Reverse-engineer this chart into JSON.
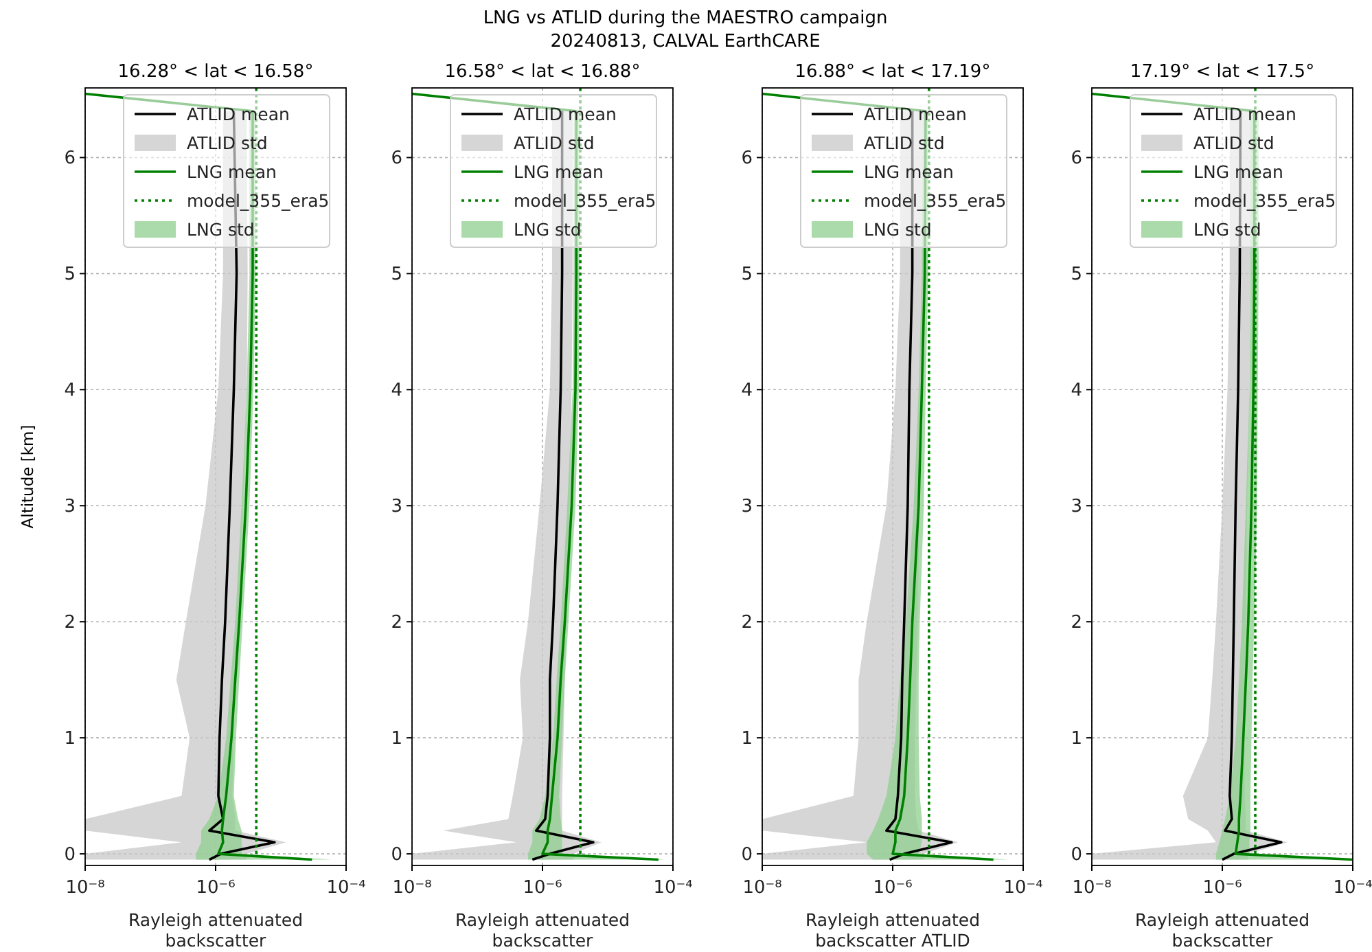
{
  "chart_data": [
    {
      "type": "line",
      "orientation": "horizontal",
      "log": "x",
      "title": "16.28° < lat < 16.58°",
      "xlabel": "Rayleigh attenuated backscatter",
      "ylabel": "Altitude [km]",
      "annotations": [
        "LNG vs ATLID during the MAESTRO campaign",
        "20240813, CALVAL EarthCARE"
      ],
      "xlim": [
        1e-08,
        0.0001
      ],
      "xticks": [
        {
          "value": 1e-08,
          "label": "10⁻⁸"
        },
        {
          "value": 1e-06,
          "label": "10⁻⁶"
        },
        {
          "value": 0.0001,
          "label": "10⁻⁴"
        }
      ],
      "ylim": [
        -0.1,
        6.6
      ],
      "yticks": [
        0,
        1,
        2,
        3,
        4,
        5,
        6
      ],
      "grid": true,
      "legend": "top",
      "series": [
        {
          "name": "ATLID mean",
          "type": "line",
          "color": "#000000",
          "line_style": "solid",
          "x": [
            -0.05,
            0,
            0.1,
            0.2,
            0.3,
            0.5,
            1,
            1.5,
            2,
            3,
            4,
            5,
            6,
            6.4
          ],
          "values": [
            8e-07,
            1.2e-06,
            8e-06,
            8e-07,
            1.3e-06,
            1.1e-06,
            1.15e-06,
            1.25e-06,
            1.4e-06,
            1.65e-06,
            1.9e-06,
            2.1e-06,
            null,
            1.9e-06
          ]
        },
        {
          "name": "ATLID std",
          "type": "area",
          "color": "#c8c8c8",
          "x": [
            -0.05,
            0,
            0.1,
            0.2,
            0.3,
            0.5,
            1,
            1.5,
            2,
            3,
            4,
            5,
            6,
            6.4
          ],
          "values": [
            null,
            null,
            null,
            null,
            null,
            null,
            null,
            null,
            null,
            null,
            null,
            null,
            null,
            null
          ],
          "lower": [
            1e-08,
            1e-08,
            3e-07,
            1e-08,
            1e-08,
            3e-07,
            4e-07,
            2.5e-07,
            3.5e-07,
            7e-07,
            1.1e-06,
            1.3e-06,
            1.3e-06,
            1.3e-06
          ],
          "upper": [
            3e-06,
            3e-06,
            1.2e-05,
            2e-06,
            2e-06,
            1.8e-06,
            1.9e-06,
            2e-06,
            2.2e-06,
            2.6e-06,
            3e-06,
            3.1e-06,
            3e-06,
            3e-06
          ]
        },
        {
          "name": "LNG mean",
          "type": "line",
          "color": "#008000",
          "line_style": "solid",
          "x": [
            -0.05,
            0,
            0.1,
            0.2,
            0.3,
            0.5,
            1,
            1.5,
            2,
            3,
            4,
            5,
            6,
            6.4,
            6.55
          ],
          "values": [
            3e-05,
            1.1e-06,
            1.3e-06,
            1.25e-06,
            1.3e-06,
            1.45e-06,
            1.75e-06,
            2e-06,
            2.3e-06,
            2.9e-06,
            3.4e-06,
            3.7e-06,
            null,
            3.7e-06,
            1e-08
          ]
        },
        {
          "name": "model_355_era5",
          "type": "line",
          "color": "#008000",
          "line_style": "dotted",
          "x": [
            0,
            6.6
          ],
          "values": [
            4.2e-06,
            4.2e-06
          ]
        },
        {
          "name": "LNG std",
          "type": "area",
          "color": "#8fcf8f",
          "x": [
            -0.05,
            0,
            0.1,
            0.2,
            0.3,
            0.5,
            1,
            1.5,
            2,
            3,
            4,
            5,
            6,
            6.4
          ],
          "values": [
            null,
            null,
            null,
            null,
            null,
            null,
            null,
            null,
            null,
            null,
            null,
            null,
            null,
            null
          ],
          "lower": [
            5e-07,
            5e-07,
            6e-07,
            6e-07,
            8e-07,
            1.1e-06,
            1.45e-06,
            1.7e-06,
            2e-06,
            2.5e-06,
            3e-06,
            3.3e-06,
            3.3e-06,
            3.3e-06
          ],
          "upper": [
            6e-05,
            2.5e-06,
            2.5e-06,
            2.5e-06,
            2.2e-06,
            1.9e-06,
            2.05e-06,
            2.3e-06,
            2.6e-06,
            3.3e-06,
            3.8e-06,
            4.1e-06,
            4.1e-06,
            4.1e-06
          ]
        }
      ]
    },
    {
      "type": "line",
      "orientation": "horizontal",
      "log": "x",
      "title": "16.58° < lat < 16.88°",
      "xlabel": "Rayleigh attenuated backscatter",
      "xlim": [
        1e-08,
        0.0001
      ],
      "xticks": [
        {
          "value": 1e-08,
          "label": "10⁻⁸"
        },
        {
          "value": 1e-06,
          "label": "10⁻⁶"
        },
        {
          "value": 0.0001,
          "label": "10⁻⁴"
        }
      ],
      "ylim": [
        -0.1,
        6.6
      ],
      "yticks": [
        0,
        1,
        2,
        3,
        4,
        5,
        6
      ],
      "grid": true,
      "legend": "top",
      "series": [
        {
          "name": "ATLID mean",
          "type": "line",
          "color": "#000000",
          "line_style": "solid",
          "x": [
            -0.05,
            0,
            0.1,
            0.2,
            0.3,
            0.5,
            1,
            1.5,
            2,
            3,
            4,
            5,
            6,
            6.4
          ],
          "values": [
            7e-07,
            1.3e-06,
            6e-06,
            8e-07,
            1.1e-06,
            1.2e-06,
            1.3e-06,
            1.3e-06,
            1.45e-06,
            1.7e-06,
            1.9e-06,
            2e-06,
            null,
            2e-06
          ]
        },
        {
          "name": "ATLID std",
          "type": "area",
          "color": "#c8c8c8",
          "x": [
            -0.05,
            0,
            0.1,
            0.2,
            0.3,
            0.5,
            1,
            1.5,
            2,
            3,
            4,
            5,
            6,
            6.4
          ],
          "values": [
            null,
            null,
            null,
            null,
            null,
            null,
            null,
            null,
            null,
            null,
            null,
            null,
            null,
            null
          ],
          "lower": [
            1e-08,
            1e-08,
            4e-07,
            3e-08,
            3e-07,
            3.5e-07,
            5e-07,
            4.5e-07,
            6e-07,
            9e-07,
            1.3e-06,
            1.4e-06,
            1.4e-06,
            1.4e-06
          ],
          "upper": [
            3e-06,
            3e-06,
            8e-06,
            2e-06,
            2e-06,
            2e-06,
            2.1e-06,
            2.2e-06,
            2.3e-06,
            2.6e-06,
            2.8e-06,
            2.9e-06,
            2.9e-06,
            2.9e-06
          ]
        },
        {
          "name": "LNG mean",
          "type": "line",
          "color": "#008000",
          "line_style": "solid",
          "x": [
            -0.05,
            0,
            0.1,
            0.2,
            0.3,
            0.5,
            1,
            1.5,
            2,
            3,
            4,
            5,
            6,
            6.4,
            6.55
          ],
          "values": [
            6e-05,
            1e-06,
            1.2e-06,
            1.2e-06,
            1.3e-06,
            1.4e-06,
            1.7e-06,
            1.9e-06,
            2.2e-06,
            2.8e-06,
            3.2e-06,
            3.3e-06,
            null,
            3.3e-06,
            1e-08
          ]
        },
        {
          "name": "model_355_era5",
          "type": "line",
          "color": "#008000",
          "line_style": "dotted",
          "x": [
            0,
            6.6
          ],
          "values": [
            3.8e-06,
            3.8e-06
          ]
        },
        {
          "name": "LNG std",
          "type": "area",
          "color": "#8fcf8f",
          "x": [
            -0.05,
            0,
            0.1,
            0.2,
            0.3,
            0.5,
            1,
            1.5,
            2,
            3,
            4,
            5,
            6,
            6.4
          ],
          "values": [
            null,
            null,
            null,
            null,
            null,
            null,
            null,
            null,
            null,
            null,
            null,
            null,
            null,
            null
          ],
          "lower": [
            6e-07,
            6e-07,
            7e-07,
            7e-07,
            9e-07,
            1.1e-06,
            1.45e-06,
            1.65e-06,
            1.9e-06,
            2.4e-06,
            2.9e-06,
            3e-06,
            3e-06,
            3e-06
          ],
          "upper": [
            8e-05,
            2e-06,
            2e-06,
            2e-06,
            1.9e-06,
            1.8e-06,
            2e-06,
            2.2e-06,
            2.5e-06,
            3.2e-06,
            3.6e-06,
            3.7e-06,
            3.7e-06,
            3.7e-06
          ]
        }
      ]
    },
    {
      "type": "line",
      "orientation": "horizontal",
      "log": "x",
      "title": "16.88° < lat < 17.19°",
      "xlabel": "Rayleigh attenuated backscatter ATLID",
      "xlim": [
        1e-08,
        0.0001
      ],
      "xticks": [
        {
          "value": 1e-08,
          "label": "10⁻⁸"
        },
        {
          "value": 1e-06,
          "label": "10⁻⁶"
        },
        {
          "value": 0.0001,
          "label": "10⁻⁴"
        }
      ],
      "ylim": [
        -0.1,
        6.6
      ],
      "yticks": [
        0,
        1,
        2,
        3,
        4,
        5,
        6
      ],
      "grid": true,
      "legend": "top",
      "series": [
        {
          "name": "ATLID mean",
          "type": "line",
          "color": "#000000",
          "line_style": "solid",
          "x": [
            -0.05,
            0,
            0.1,
            0.2,
            0.3,
            0.5,
            1,
            1.5,
            2,
            3,
            4,
            5,
            6,
            6.4
          ],
          "values": [
            9e-07,
            1.5e-06,
            8e-06,
            8e-07,
            1.1e-06,
            1.2e-06,
            1.35e-06,
            1.4e-06,
            1.5e-06,
            1.7e-06,
            1.8e-06,
            2e-06,
            null,
            2e-06
          ]
        },
        {
          "name": "ATLID std",
          "type": "area",
          "color": "#c8c8c8",
          "x": [
            -0.05,
            0,
            0.1,
            0.2,
            0.3,
            0.5,
            1,
            1.5,
            2,
            3,
            4,
            5,
            6,
            6.4
          ],
          "values": [
            null,
            null,
            null,
            null,
            null,
            null,
            null,
            null,
            null,
            null,
            null,
            null,
            null,
            null
          ],
          "lower": [
            1e-08,
            1e-08,
            4e-07,
            1e-08,
            1e-08,
            2.5e-07,
            3e-07,
            3e-07,
            4e-07,
            8e-07,
            1.1e-06,
            1.3e-06,
            1.3e-06,
            1.3e-06
          ],
          "upper": [
            3e-06,
            3e-06,
            1e-05,
            2.5e-06,
            2.3e-06,
            2.2e-06,
            2.2e-06,
            2.3e-06,
            2.4e-06,
            2.6e-06,
            2.8e-06,
            2.9e-06,
            2.9e-06,
            2.9e-06
          ]
        },
        {
          "name": "LNG mean",
          "type": "line",
          "color": "#008000",
          "line_style": "solid",
          "x": [
            -0.05,
            0,
            0.1,
            0.2,
            0.3,
            0.5,
            1,
            1.5,
            2,
            3,
            4,
            5,
            6,
            6.4,
            6.55
          ],
          "values": [
            3.5e-05,
            1e-06,
            1.1e-06,
            1.1e-06,
            1.3e-06,
            1.5e-06,
            1.7e-06,
            1.85e-06,
            2e-06,
            2.5e-06,
            2.8e-06,
            3.1e-06,
            null,
            3.2e-06,
            1e-08
          ]
        },
        {
          "name": "model_355_era5",
          "type": "line",
          "color": "#008000",
          "line_style": "dotted",
          "x": [
            0,
            6.6
          ],
          "values": [
            3.6e-06,
            3.6e-06
          ]
        },
        {
          "name": "LNG std",
          "type": "area",
          "color": "#8fcf8f",
          "x": [
            -0.05,
            0,
            0.1,
            0.2,
            0.3,
            0.5,
            1,
            1.5,
            2,
            3,
            4,
            5,
            6,
            6.4
          ],
          "values": [
            null,
            null,
            null,
            null,
            null,
            null,
            null,
            null,
            null,
            null,
            null,
            null,
            null,
            null
          ],
          "lower": [
            5e-07,
            4e-07,
            4e-07,
            5e-07,
            6e-07,
            8e-07,
            1.1e-06,
            1.3e-06,
            1.6e-06,
            2.1e-06,
            2.5e-06,
            2.8e-06,
            2.9e-06,
            2.9e-06
          ],
          "upper": [
            6e-05,
            2.5e-06,
            2.8e-06,
            2.8e-06,
            2.8e-06,
            2.6e-06,
            2.5e-06,
            2.5e-06,
            2.6e-06,
            3e-06,
            3.2e-06,
            3.5e-06,
            3.5e-06,
            3.5e-06
          ]
        }
      ]
    },
    {
      "type": "line",
      "orientation": "horizontal",
      "log": "x",
      "title": "17.19° < lat < 17.5°",
      "xlabel": "Rayleigh attenuated backscatter",
      "xlim": [
        1e-08,
        0.0001
      ],
      "xticks": [
        {
          "value": 1e-08,
          "label": "10⁻⁸"
        },
        {
          "value": 1e-06,
          "label": "10⁻⁶"
        },
        {
          "value": 0.0001,
          "label": "10⁻⁴"
        }
      ],
      "ylim": [
        -0.1,
        6.6
      ],
      "yticks": [
        0,
        1,
        2,
        3,
        4,
        5,
        6
      ],
      "grid": true,
      "legend": "top",
      "series": [
        {
          "name": "ATLID mean",
          "type": "line",
          "color": "#000000",
          "line_style": "solid",
          "x": [
            -0.05,
            0,
            0.1,
            0.2,
            0.3,
            0.5,
            1,
            1.5,
            2,
            3,
            4,
            5,
            6,
            6.4
          ],
          "values": [
            1e-06,
            1.5e-06,
            8e-06,
            1.1e-06,
            1.4e-06,
            1.3e-06,
            1.4e-06,
            1.45e-06,
            1.5e-06,
            1.6e-06,
            1.75e-06,
            1.85e-06,
            null,
            1.9e-06
          ]
        },
        {
          "name": "ATLID std",
          "type": "area",
          "color": "#c8c8c8",
          "x": [
            -0.05,
            0,
            0.1,
            0.2,
            0.3,
            0.5,
            1,
            1.5,
            2,
            3,
            4,
            5,
            6,
            6.4
          ],
          "values": [
            null,
            null,
            null,
            null,
            null,
            null,
            null,
            null,
            null,
            null,
            null,
            null,
            null,
            null
          ],
          "lower": [
            1e-08,
            1e-08,
            8e-07,
            6e-07,
            3e-07,
            2.5e-07,
            6e-07,
            7e-07,
            8e-07,
            1e-06,
            1.2e-06,
            1.3e-06,
            1.3e-06,
            1.3e-06
          ],
          "upper": [
            2.5e-06,
            2.5e-06,
            1e-05,
            2.3e-06,
            2.3e-06,
            2.2e-06,
            2.2e-06,
            2.2e-06,
            2.3e-06,
            2.4e-06,
            2.6e-06,
            2.7e-06,
            2.7e-06,
            2.7e-06
          ]
        },
        {
          "name": "LNG mean",
          "type": "line",
          "color": "#008000",
          "line_style": "solid",
          "x": [
            -0.05,
            0,
            0.1,
            0.2,
            0.3,
            0.5,
            1,
            1.5,
            2,
            3,
            4,
            5,
            6,
            6.4,
            6.55
          ],
          "values": [
            0.0001,
            1.6e-06,
            1.7e-06,
            1.8e-06,
            1.8e-06,
            1.9e-06,
            2.1e-06,
            2.3e-06,
            2.5e-06,
            2.8e-06,
            3e-06,
            3.1e-06,
            null,
            3.1e-06,
            1e-08
          ]
        },
        {
          "name": "model_355_era5",
          "type": "line",
          "color": "#008000",
          "line_style": "dotted",
          "x": [
            0,
            6.6
          ],
          "values": [
            3.2e-06,
            3.2e-06
          ]
        },
        {
          "name": "LNG std",
          "type": "area",
          "color": "#8fcf8f",
          "x": [
            -0.05,
            0,
            0.1,
            0.2,
            0.3,
            0.5,
            1,
            1.5,
            2,
            3,
            4,
            5,
            6,
            6.4
          ],
          "values": [
            null,
            null,
            null,
            null,
            null,
            null,
            null,
            null,
            null,
            null,
            null,
            null,
            null,
            null
          ],
          "lower": [
            8e-07,
            8e-07,
            9e-07,
            1e-06,
            1.1e-06,
            1.3e-06,
            1.6e-06,
            1.8e-06,
            2e-06,
            2.3e-06,
            2.6e-06,
            2.7e-06,
            2.7e-06,
            2.7e-06
          ],
          "upper": [
            0.0001,
            2.6e-06,
            2.6e-06,
            2.7e-06,
            2.7e-06,
            2.7e-06,
            2.8e-06,
            2.9e-06,
            3.1e-06,
            3.4e-06,
            3.5e-06,
            3.6e-06,
            3.6e-06,
            3.6e-06
          ]
        }
      ]
    }
  ]
}
